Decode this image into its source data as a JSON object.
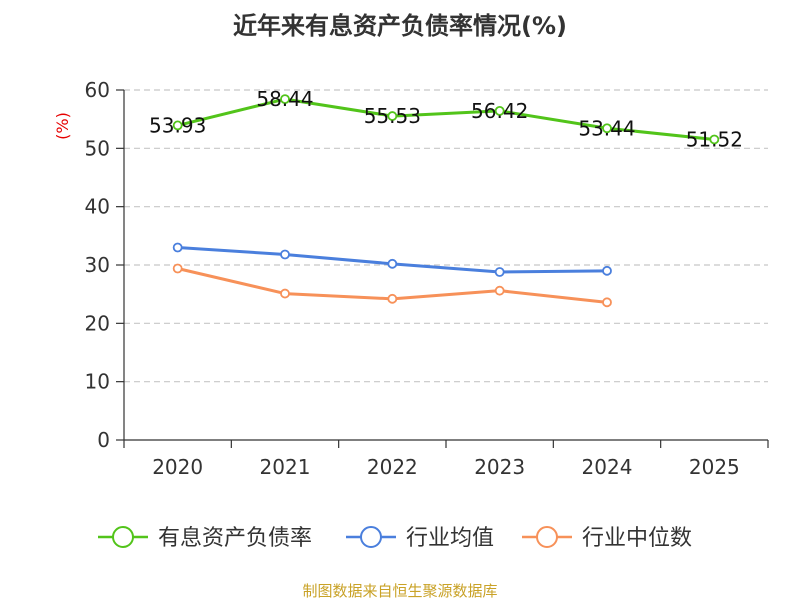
{
  "chart_data": {
    "type": "line",
    "title": "近年来有息资产负债率情况(%)",
    "ylabel": "(%)",
    "xlabel": "",
    "categories": [
      "2020",
      "2021",
      "2022",
      "2023",
      "2024",
      "2025"
    ],
    "ylim": [
      0,
      60
    ],
    "yticks": [
      0,
      10,
      20,
      30,
      40,
      50,
      60
    ],
    "grid": "horizontal dashed",
    "legend_position": "bottom",
    "series": [
      {
        "name": "有息资产负债率",
        "color": "#52c41a",
        "values": [
          53.93,
          58.44,
          55.53,
          56.42,
          53.44,
          51.52
        ],
        "labels": [
          "53.93",
          "58.44",
          "55.53",
          "56.42",
          "53.44",
          "51.52"
        ]
      },
      {
        "name": "行业均值",
        "color": "#4a7fdd",
        "values": [
          33.0,
          31.8,
          30.2,
          28.8,
          29.0,
          null
        ]
      },
      {
        "name": "行业中位数",
        "color": "#f79159",
        "values": [
          29.4,
          25.1,
          24.2,
          25.6,
          23.6,
          null
        ]
      }
    ]
  },
  "source_note": "制图数据来自恒生聚源数据库"
}
